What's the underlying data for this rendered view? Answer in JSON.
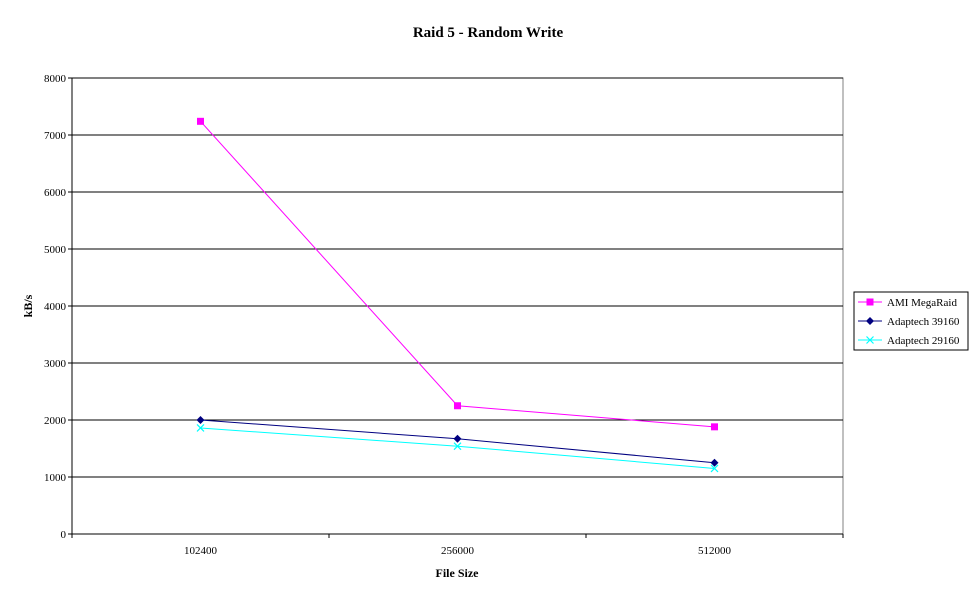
{
  "chart_data": {
    "type": "line",
    "title": "Raid 5 - Random Write",
    "xlabel": "File Size",
    "ylabel": "kB/s",
    "categories": [
      "102400",
      "256000",
      "512000"
    ],
    "ylim": [
      0,
      8000
    ],
    "yticks": [
      "0",
      "1000",
      "2000",
      "3000",
      "4000",
      "5000",
      "6000",
      "7000",
      "8000"
    ],
    "grid": true,
    "legend_position": "right",
    "series": [
      {
        "name": "AMI MegaRaid",
        "values": [
          7240,
          2250,
          1880
        ],
        "color": "#ff00ff",
        "marker": "square"
      },
      {
        "name": "Adaptech 39160",
        "values": [
          2000,
          1670,
          1250
        ],
        "color": "#000080",
        "marker": "diamond"
      },
      {
        "name": "Adaptech 29160",
        "values": [
          1860,
          1540,
          1150
        ],
        "color": "#00ffff",
        "marker": "x"
      }
    ]
  }
}
